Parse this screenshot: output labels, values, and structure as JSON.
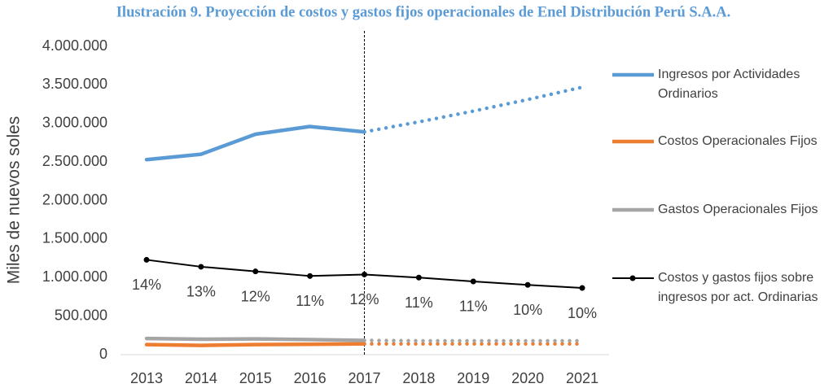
{
  "chart_data": {
    "type": "line",
    "title": "Ilustración 9. Proyección de costos y gastos fijos operacionales de Enel Distribución Perú S.A.A.",
    "y_label": "Miles de nuevos soles",
    "categories": [
      "2013",
      "2014",
      "2015",
      "2016",
      "2017",
      "2018",
      "2019",
      "2020",
      "2021"
    ],
    "projection_start": "2017",
    "ylim": [
      0,
      4000000
    ],
    "yticks": [
      0,
      {
        "value": 500000,
        "label": "500.000"
      },
      {
        "value": 1000000,
        "label": "1.000.000"
      },
      {
        "value": 1500000,
        "label": "1.500.000"
      },
      {
        "value": 2000000,
        "label": "2.000.000"
      },
      {
        "value": 2500000,
        "label": "2.500.000"
      },
      {
        "value": 3000000,
        "label": "3.000.000"
      },
      {
        "value": 3500000,
        "label": "3.500.000"
      },
      {
        "value": 4000000,
        "label": "4.000.000"
      }
    ],
    "y2lim": [
      0,
      45
    ],
    "grid": false,
    "legend": "right",
    "series": [
      {
        "name": "Ingresos por Actividades Ordinarios",
        "color": "#5b9bd5",
        "values": [
          2530000,
          2600000,
          2860000,
          2960000,
          2890000,
          3020000,
          3160000,
          3310000,
          3470000
        ]
      },
      {
        "name": "Costos Operacionales Fijos",
        "color": "#ed7d31",
        "values": [
          130000,
          120000,
          130000,
          135000,
          140000,
          140000,
          140000,
          140000,
          140000
        ]
      },
      {
        "name": "Gastos Operacionales Fijos",
        "color": "#a5a5a5",
        "values": [
          210000,
          200000,
          205000,
          195000,
          185000,
          180000,
          180000,
          180000,
          180000
        ]
      },
      {
        "name": "Costos y gastos fijos sobre ingresos por act. Ordinarias",
        "color": "#000000",
        "axis": "y2",
        "markers": true,
        "values": [
          13.84,
          12.83,
          12.15,
          11.48,
          11.7,
          11.25,
          10.69,
          10.18,
          9.73
        ],
        "value_labels": [
          "14%",
          "13%",
          "12%",
          "11%",
          "12%",
          "11%",
          "11%",
          "10%",
          "10%"
        ]
      }
    ]
  }
}
